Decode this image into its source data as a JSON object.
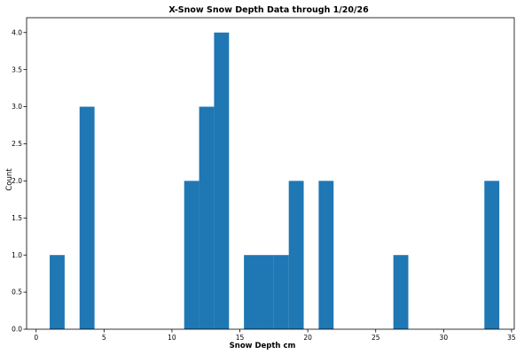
{
  "chart_data": {
    "type": "bar",
    "title": "X-Snow Snow Depth Data through 1/20/26",
    "xlabel": "Snow Depth cm",
    "ylabel": "Count",
    "xlim": [
      -0.7,
      35.2
    ],
    "ylim": [
      0,
      4.2
    ],
    "xticks": [
      0,
      5,
      10,
      15,
      20,
      25,
      30,
      35
    ],
    "yticks": [
      0.0,
      0.5,
      1.0,
      1.5,
      2.0,
      2.5,
      3.0,
      3.5,
      4.0
    ],
    "bin_width": 1.1,
    "bins": [
      {
        "left": 1.0,
        "count": 1
      },
      {
        "left": 3.2,
        "count": 3
      },
      {
        "left": 10.9,
        "count": 2
      },
      {
        "left": 12.0,
        "count": 3
      },
      {
        "left": 13.1,
        "count": 4
      },
      {
        "left": 15.3,
        "count": 1
      },
      {
        "left": 16.4,
        "count": 1
      },
      {
        "left": 17.5,
        "count": 1
      },
      {
        "left": 18.6,
        "count": 2
      },
      {
        "left": 20.8,
        "count": 2
      },
      {
        "left": 26.3,
        "count": 1
      },
      {
        "left": 33.0,
        "count": 2
      }
    ],
    "bar_color": "#1f77b4",
    "grid": false,
    "legend": "none"
  }
}
